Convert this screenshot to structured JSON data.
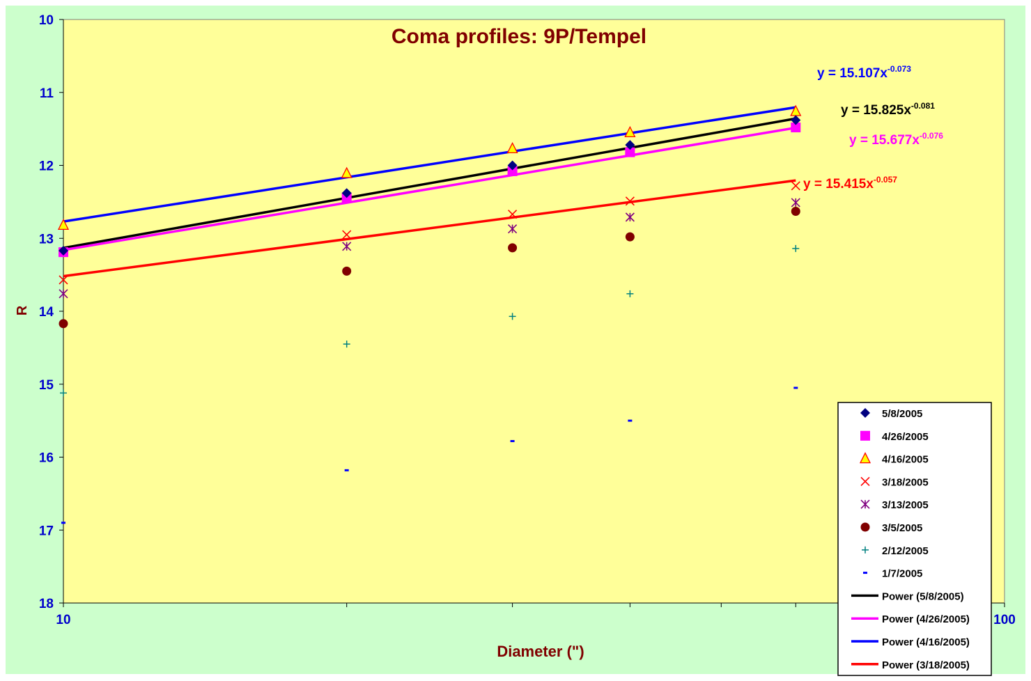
{
  "chart_data": {
    "type": "scatter",
    "title": "Coma profiles: 9P/Tempel",
    "xlabel": "Diameter (\")",
    "ylabel": "R",
    "xscale": "log",
    "xlim": [
      10,
      100
    ],
    "ylim": [
      10,
      18
    ],
    "y_inverted": true,
    "x_ticks": [
      "10",
      "100"
    ],
    "y_ticks": [
      "10",
      "11",
      "12",
      "13",
      "14",
      "15",
      "16",
      "17",
      "18"
    ],
    "grid": false,
    "legend_position": "bottom-right",
    "x": [
      10,
      20,
      30,
      40,
      60
    ],
    "series": [
      {
        "name": "5/8/2005",
        "marker": "diamond",
        "color": "#000080",
        "values": [
          13.17,
          12.38,
          12.0,
          11.72,
          11.38
        ]
      },
      {
        "name": "4/26/2005",
        "marker": "square",
        "color": "#ff00ff",
        "values": [
          13.19,
          12.44,
          12.08,
          11.82,
          11.48
        ]
      },
      {
        "name": "4/16/2005",
        "marker": "triangle",
        "color": "#ff0000",
        "fill": "#ffff00",
        "values": [
          12.82,
          12.11,
          11.77,
          11.55,
          11.26
        ]
      },
      {
        "name": "3/18/2005",
        "marker": "x",
        "color": "#ff0000",
        "values": [
          13.57,
          12.95,
          12.67,
          12.49,
          12.28
        ]
      },
      {
        "name": "3/13/2005",
        "marker": "star",
        "color": "#800080",
        "values": [
          13.76,
          13.11,
          12.87,
          12.71,
          12.51
        ]
      },
      {
        "name": "3/5/2005",
        "marker": "circle",
        "color": "#800000",
        "values": [
          14.17,
          13.45,
          13.13,
          12.98,
          12.63
        ]
      },
      {
        "name": "2/12/2005",
        "marker": "plus",
        "color": "#008080",
        "values": [
          15.12,
          14.45,
          14.07,
          13.76,
          13.14
        ]
      },
      {
        "name": "1/7/2005",
        "marker": "dash",
        "color": "#0000ff",
        "values": [
          16.9,
          16.18,
          15.78,
          15.5,
          15.05
        ]
      }
    ],
    "trendlines": [
      {
        "name": "Power (5/8/2005)",
        "color": "#000000",
        "a": 15.825,
        "b": -0.081,
        "equation": "y = 15.825x",
        "exponent": "-0.081"
      },
      {
        "name": "Power (4/26/2005)",
        "color": "#ff00ff",
        "a": 15.677,
        "b": -0.076,
        "equation": "y = 15.677x",
        "exponent": "-0.076"
      },
      {
        "name": "Power (4/16/2005)",
        "color": "#0000ff",
        "a": 15.107,
        "b": -0.073,
        "equation": "y = 15.107x",
        "exponent": "-0.073"
      },
      {
        "name": "Power (3/18/2005)",
        "color": "#ff0000",
        "a": 15.415,
        "b": -0.057,
        "equation": "y = 15.415x",
        "exponent": "-0.057"
      }
    ],
    "colors": {
      "outer_background": "#ccffcc",
      "plot_background": "#ffff99",
      "title": "#800000",
      "axis_label": "#800000",
      "tick_label": "#0000cc"
    }
  }
}
